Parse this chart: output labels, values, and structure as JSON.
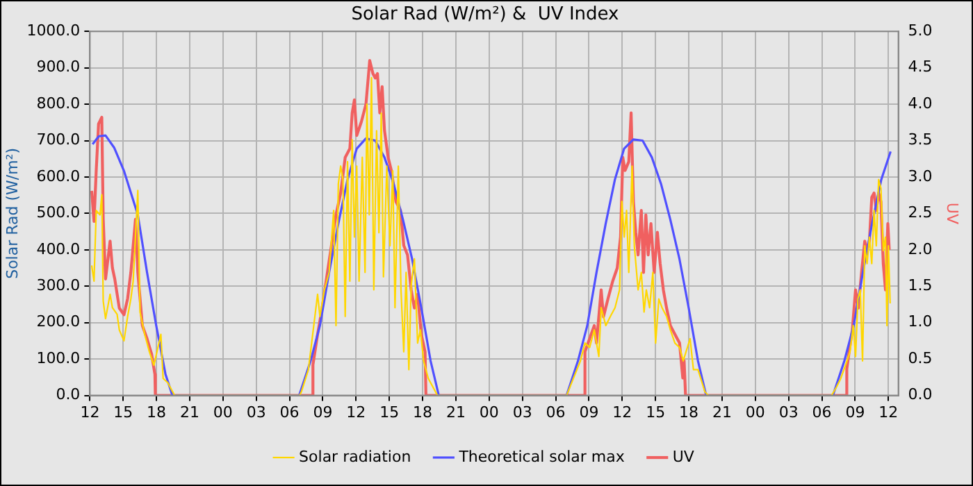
{
  "chart_data": {
    "type": "line",
    "title": "Solar Rad (W/m²) &  UV Index",
    "ylabel": "Solar Rad (W/m²)",
    "y2label": "UV",
    "xlim": [
      12,
      84.9
    ],
    "xticks": [
      {
        "value": 12,
        "label": "12"
      },
      {
        "value": 15,
        "label": "15"
      },
      {
        "value": 18,
        "label": "18"
      },
      {
        "value": 21,
        "label": "21"
      },
      {
        "value": 24,
        "label": "00"
      },
      {
        "value": 27,
        "label": "03"
      },
      {
        "value": 30,
        "label": "06"
      },
      {
        "value": 33,
        "label": "09"
      },
      {
        "value": 36,
        "label": "12"
      },
      {
        "value": 39,
        "label": "15"
      },
      {
        "value": 42,
        "label": "18"
      },
      {
        "value": 45,
        "label": "21"
      },
      {
        "value": 48,
        "label": "00"
      },
      {
        "value": 51,
        "label": "03"
      },
      {
        "value": 54,
        "label": "06"
      },
      {
        "value": 57,
        "label": "09"
      },
      {
        "value": 60,
        "label": "12"
      },
      {
        "value": 63,
        "label": "15"
      },
      {
        "value": 66,
        "label": "18"
      },
      {
        "value": 69,
        "label": "21"
      },
      {
        "value": 72,
        "label": "00"
      },
      {
        "value": 75,
        "label": "03"
      },
      {
        "value": 78,
        "label": "06"
      },
      {
        "value": 81,
        "label": "09"
      },
      {
        "value": 84,
        "label": "12"
      }
    ],
    "ylim": [
      0,
      1000
    ],
    "yticks": [
      {
        "value": 0,
        "label": "0.0"
      },
      {
        "value": 100,
        "label": "100.0"
      },
      {
        "value": 200,
        "label": "200.0"
      },
      {
        "value": 300,
        "label": "300.0"
      },
      {
        "value": 400,
        "label": "400.0"
      },
      {
        "value": 500,
        "label": "500.0"
      },
      {
        "value": 600,
        "label": "600.0"
      },
      {
        "value": 700,
        "label": "700.0"
      },
      {
        "value": 800,
        "label": "800.0"
      },
      {
        "value": 900,
        "label": "900.0"
      },
      {
        "value": 1000,
        "label": "1000.0"
      }
    ],
    "y2lim": [
      0,
      5
    ],
    "y2ticks": [
      {
        "value": 0,
        "label": "0.0"
      },
      {
        "value": 0.5,
        "label": "0.5"
      },
      {
        "value": 1,
        "label": "1.0"
      },
      {
        "value": 1.5,
        "label": "1.5"
      },
      {
        "value": 2,
        "label": "2.0"
      },
      {
        "value": 2.5,
        "label": "2.5"
      },
      {
        "value": 3,
        "label": "3.0"
      },
      {
        "value": 3.5,
        "label": "3.5"
      },
      {
        "value": 4,
        "label": "4.0"
      },
      {
        "value": 4.5,
        "label": "4.5"
      },
      {
        "value": 5,
        "label": "5.0"
      }
    ],
    "grid": true,
    "legend": "bottom",
    "series": [
      {
        "name": "Solar radiation",
        "color": "#ffd700",
        "x": [
          12.16,
          12.37,
          12.57,
          12.91,
          13.07,
          13.2,
          13.41,
          13.82,
          14.03,
          14.45,
          14.65,
          15.07,
          15.4,
          15.69,
          15.9,
          16.32,
          16.52,
          16.94,
          17.36,
          17.77,
          18.4,
          18.6,
          19.02,
          19.64,
          30.9,
          31.07,
          31.7,
          32.53,
          32.74,
          33.15,
          33.57,
          33.98,
          34.19,
          34.4,
          34.61,
          34.82,
          35.02,
          35.23,
          35.44,
          35.65,
          35.85,
          36.06,
          36.27,
          36.56,
          36.81,
          36.98,
          37.19,
          37.39,
          37.6,
          37.85,
          38.06,
          38.27,
          38.47,
          38.77,
          39.06,
          39.31,
          39.51,
          39.81,
          40.05,
          40.3,
          40.51,
          40.76,
          40.97,
          41.26,
          41.55,
          41.8,
          42.09,
          42.51,
          43.34,
          54.98,
          55.6,
          56.23,
          56.64,
          57.06,
          57.48,
          57.89,
          58.1,
          58.52,
          58.93,
          59.35,
          59.76,
          59.97,
          60.18,
          60.39,
          60.59,
          60.89,
          61.09,
          61.43,
          61.72,
          61.97,
          62.17,
          62.47,
          62.76,
          63.01,
          63.3,
          63.59,
          64.0,
          64.34,
          64.75,
          65.17,
          65.5,
          66.12,
          66.42,
          66.83,
          67.46,
          67.75,
          78.88,
          79.3,
          79.71,
          80.13,
          80.54,
          80.83,
          81.04,
          81.25,
          81.46,
          81.67,
          81.87,
          82.08,
          82.29,
          82.5,
          82.71,
          82.91,
          83.12,
          83.33,
          83.54,
          83.74,
          83.87,
          84.0,
          84.16
        ],
        "values": [
          357,
          314,
          508,
          496,
          551,
          259,
          211,
          278,
          241,
          223,
          180,
          150,
          217,
          265,
          314,
          563,
          229,
          168,
          120,
          83,
          168,
          47,
          35,
          0,
          0,
          10,
          71,
          278,
          217,
          290,
          338,
          508,
          192,
          581,
          630,
          593,
          217,
          642,
          314,
          702,
          435,
          630,
          314,
          654,
          338,
          800,
          496,
          873,
          290,
          727,
          447,
          775,
          326,
          630,
          411,
          617,
          241,
          630,
          290,
          120,
          338,
          71,
          302,
          375,
          144,
          180,
          95,
          47,
          0,
          0,
          47,
          95,
          144,
          132,
          180,
          107,
          241,
          192,
          217,
          241,
          290,
          533,
          435,
          508,
          338,
          630,
          411,
          290,
          338,
          229,
          290,
          241,
          338,
          144,
          265,
          241,
          217,
          180,
          144,
          132,
          95,
          156,
          71,
          71,
          10,
          0,
          0,
          22,
          47,
          83,
          120,
          192,
          107,
          265,
          290,
          95,
          411,
          362,
          435,
          362,
          508,
          411,
          593,
          569,
          398,
          435,
          192,
          411,
          253
        ]
      },
      {
        "name": "Theoretical solar max",
        "color": "#5050ff",
        "x": [
          12.24,
          12.8,
          13.41,
          14.2,
          15.07,
          16.32,
          17.15,
          17.98,
          18.81,
          19.44,
          30.87,
          31.9,
          32.74,
          33.57,
          34.4,
          35.23,
          36.06,
          36.89,
          37.73,
          38.56,
          39.39,
          40.22,
          41.05,
          41.88,
          42.72,
          43.46,
          54.98,
          56.01,
          56.85,
          57.68,
          58.51,
          59.34,
          60.17,
          61.0,
          61.84,
          62.67,
          63.5,
          64.33,
          65.16,
          65.99,
          66.83,
          67.57,
          79.0,
          80.03,
          80.87,
          81.7,
          82.53,
          83.36,
          84.2
        ],
        "values": [
          690,
          712,
          714,
          680,
          617,
          496,
          338,
          192,
          59,
          0,
          0,
          95,
          192,
          338,
          472,
          593,
          678,
          706,
          700,
          654,
          581,
          484,
          375,
          241,
          95,
          0,
          0,
          95,
          192,
          338,
          472,
          593,
          678,
          703,
          700,
          654,
          581,
          484,
          375,
          241,
          95,
          0,
          0,
          95,
          192,
          338,
          472,
          593,
          670
        ]
      },
      {
        "name": "UV",
        "color": "#f06060",
        "axis": "y2",
        "x": [
          12.16,
          12.37,
          12.57,
          12.78,
          13.07,
          13.2,
          13.41,
          13.82,
          14.03,
          14.24,
          14.65,
          15.07,
          15.4,
          15.69,
          16.11,
          16.32,
          16.73,
          17.15,
          17.56,
          17.86,
          17.9,
          32.1,
          32.11,
          32.53,
          32.94,
          33.36,
          33.78,
          34.19,
          34.61,
          35.02,
          35.44,
          35.65,
          35.85,
          36.06,
          36.48,
          36.89,
          37.23,
          37.52,
          37.73,
          37.93,
          38.14,
          38.35,
          38.56,
          38.89,
          39.18,
          39.6,
          40.01,
          40.3,
          40.64,
          40.97,
          41.26,
          41.55,
          41.88,
          42.22,
          42.3,
          56.63,
          56.64,
          57.06,
          57.48,
          57.68,
          58.1,
          58.31,
          58.72,
          59.14,
          59.55,
          59.85,
          60.05,
          60.26,
          60.59,
          60.8,
          61.01,
          61.22,
          61.43,
          61.72,
          61.92,
          62.13,
          62.34,
          62.59,
          62.88,
          63.17,
          63.42,
          63.71,
          64.0,
          64.34,
          64.75,
          65.17,
          65.46,
          65.58,
          65.71,
          80.24,
          80.25,
          80.46,
          80.75,
          81.04,
          81.29,
          81.58,
          81.87,
          82.08,
          82.29,
          82.5,
          82.71,
          82.91,
          83.12,
          83.33,
          83.54,
          83.74,
          83.95,
          84.08
        ],
        "values": [
          2.81,
          2.39,
          3.09,
          3.73,
          3.82,
          2.42,
          1.6,
          2.12,
          1.75,
          1.6,
          1.2,
          1.11,
          1.33,
          1.69,
          2.42,
          1.69,
          0.96,
          0.78,
          0.57,
          0.29,
          0,
          0,
          0.42,
          0.84,
          1.2,
          1.63,
          2.06,
          2.48,
          2.78,
          3.27,
          3.39,
          3.88,
          4.06,
          3.57,
          3.76,
          4.0,
          4.6,
          4.42,
          4.36,
          4.42,
          3.88,
          4.24,
          3.64,
          3.27,
          3.09,
          2.66,
          2.54,
          2.06,
          1.93,
          1.45,
          1.2,
          1.39,
          0.84,
          0.6,
          0,
          0,
          0.6,
          0.78,
          0.96,
          0.72,
          1.45,
          1.08,
          1.33,
          1.57,
          1.75,
          2.18,
          3.27,
          3.09,
          3.21,
          3.88,
          2.66,
          2.24,
          1.93,
          2.54,
          1.69,
          2.48,
          1.93,
          2.36,
          1.69,
          2.24,
          1.81,
          1.45,
          1.2,
          0.96,
          0.84,
          0.72,
          0.24,
          0.48,
          0,
          0,
          0.36,
          0.6,
          0.9,
          1.45,
          1.2,
          1.69,
          2.12,
          2.0,
          2.12,
          2.72,
          2.78,
          2.54,
          2.78,
          2.66,
          1.81,
          1.45,
          2.36,
          2.0
        ]
      }
    ]
  }
}
